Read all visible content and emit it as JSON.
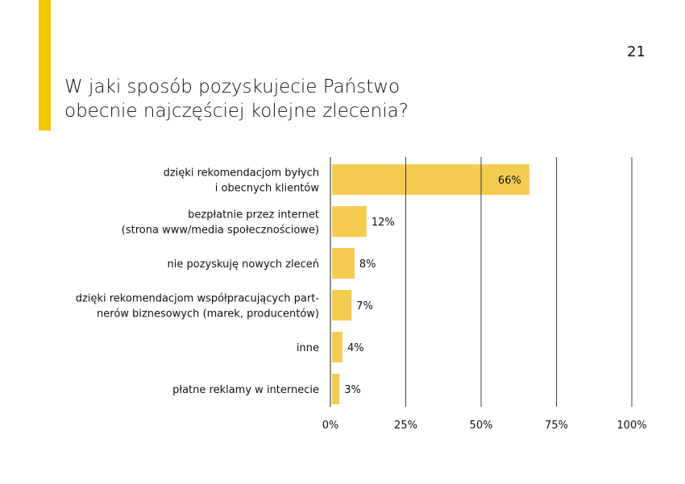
{
  "page_number": "21",
  "title_lines": [
    "W jaki sposób pozyskujecie Państwo",
    "obecnie najczęściej kolejne zlecenia?"
  ],
  "colors": {
    "accent": "#F2C500",
    "bar": "#F3C843",
    "grid": "#222222"
  },
  "chart_data": {
    "type": "bar",
    "orientation": "horizontal",
    "title": "W jaki sposób pozyskujecie Państwo obecnie najczęściej kolejne zlecenia?",
    "categories": [
      [
        "dzięki rekomendacjom byłych",
        "i obecnych klientów"
      ],
      [
        "bezpłatnie przez internet",
        "(strona www/media społecznościowe)"
      ],
      [
        "nie pozyskuję nowych zleceń"
      ],
      [
        "dzięki rekomendacjom współpracujących part-",
        "nerów biznesowych (marek, producentów)"
      ],
      [
        "inne"
      ],
      [
        "płatne reklamy w internecie"
      ]
    ],
    "values": [
      66,
      12,
      8,
      7,
      4,
      3
    ],
    "value_labels": [
      "66%",
      "12%",
      "8%",
      "7%",
      "4%",
      "3%"
    ],
    "xlim": [
      0,
      100
    ],
    "xticks": [
      0,
      25,
      50,
      75,
      100
    ],
    "xtick_labels": [
      "0%",
      "25%",
      "50%",
      "75%",
      "100%"
    ],
    "grid": true
  }
}
